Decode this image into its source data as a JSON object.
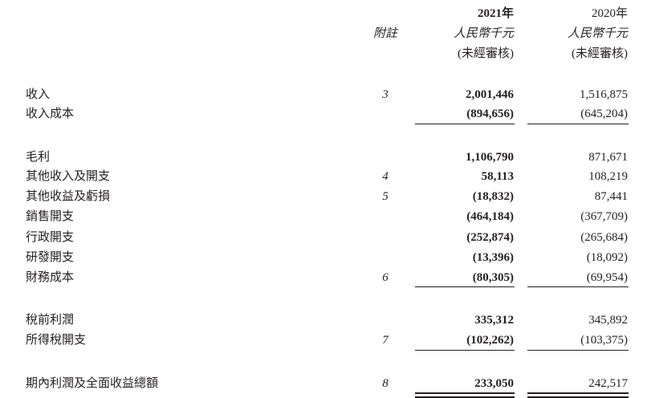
{
  "header": {
    "note_label": "附註",
    "col_2021": {
      "year": "2021年",
      "unit": "人民幣千元",
      "status": "(未經審核)"
    },
    "col_2020": {
      "year": "2020年",
      "unit": "人民幣千元",
      "status": "(未經審核)"
    }
  },
  "rows": [
    {
      "label": "收入",
      "note": "3",
      "y2021": "2,001,446",
      "y2020": "1,516,875"
    },
    {
      "label": "收入成本",
      "note": "",
      "y2021": "(894,656)",
      "y2020": "(645,204)"
    },
    {
      "label": "毛利",
      "note": "",
      "y2021": "1,106,790",
      "y2020": "871,671"
    },
    {
      "label": "其他收入及開支",
      "note": "4",
      "y2021": "58,113",
      "y2020": "108,219"
    },
    {
      "label": "其他收益及虧損",
      "note": "5",
      "y2021": "(18,832)",
      "y2020": "87,441"
    },
    {
      "label": "銷售開支",
      "note": "",
      "y2021": "(464,184)",
      "y2020": "(367,709)"
    },
    {
      "label": "行政開支",
      "note": "",
      "y2021": "(252,874)",
      "y2020": "(265,684)"
    },
    {
      "label": "研發開支",
      "note": "",
      "y2021": "(13,396)",
      "y2020": "(18,092)"
    },
    {
      "label": "財務成本",
      "note": "6",
      "y2021": "(80,305)",
      "y2020": "(69,954)"
    },
    {
      "label": "稅前利潤",
      "note": "",
      "y2021": "335,312",
      "y2020": "345,892"
    },
    {
      "label": "所得稅開支",
      "note": "7",
      "y2021": "(102,262)",
      "y2020": "(103,375)"
    },
    {
      "label": "期內利潤及全面收益總額",
      "note": "8",
      "y2021": "233,050",
      "y2020": "242,517"
    }
  ]
}
